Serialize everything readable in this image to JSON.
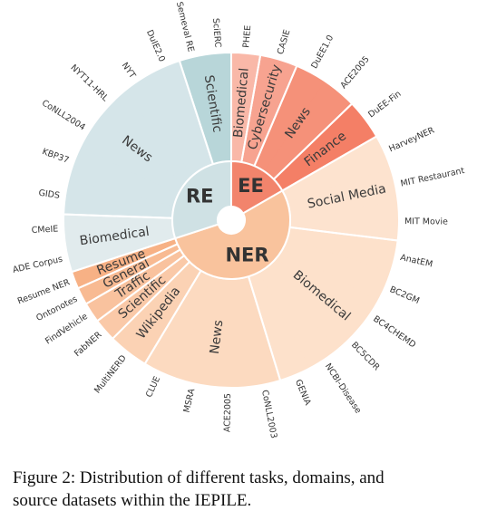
{
  "chart_data": {
    "type": "sunburst",
    "caption": [
      "Figure 2: Distribution of different tasks, domains, and",
      "source datasets within the IEPILE."
    ],
    "tasks": [
      {
        "name": "EE",
        "color": "#f2846c",
        "domains": [
          {
            "name": "Biomedical",
            "color": "#f9b8a8",
            "datasets": [
              {
                "name": "PHEE",
                "value": 10
              }
            ]
          },
          {
            "name": "Cybersecurity",
            "color": "#f7a390",
            "datasets": [
              {
                "name": "CASIE",
                "value": 13
              }
            ]
          },
          {
            "name": "News",
            "color": "#f59179",
            "datasets": [
              {
                "name": "DuEE1.0",
                "value": 11
              },
              {
                "name": "ACE2005",
                "value": 12
              }
            ]
          },
          {
            "name": "Finance",
            "color": "#f47f66",
            "datasets": [
              {
                "name": "DuEE-Fin",
                "value": 14
              }
            ]
          }
        ]
      },
      {
        "name": "NER",
        "color": "#f9c39d",
        "domains": [
          {
            "name": "Social Media",
            "color": "#fde3cf",
            "datasets": [
              {
                "name": "HarveyNER",
                "value": 12
              },
              {
                "name": "MIT Restaurant",
                "value": 12
              },
              {
                "name": "MIT Movie",
                "value": 13
              }
            ]
          },
          {
            "name": "Biomedical",
            "color": "#fde1cb",
            "datasets": [
              {
                "name": "AnatEM",
                "value": 11
              },
              {
                "name": "BC2GM",
                "value": 11
              },
              {
                "name": "BC4CHEMD",
                "value": 11
              },
              {
                "name": "BC5CDR",
                "value": 11
              },
              {
                "name": "NCBI-Disease",
                "value": 11
              },
              {
                "name": "GENIA",
                "value": 11
              }
            ]
          },
          {
            "name": "News",
            "color": "#fcdac0",
            "datasets": [
              {
                "name": "CoNLL2003",
                "value": 12
              },
              {
                "name": "ACE2005",
                "value": 12
              },
              {
                "name": "MSRA",
                "value": 12
              },
              {
                "name": "CLUE",
                "value": 12
              }
            ]
          },
          {
            "name": "Wikipedia",
            "color": "#fbd2b4",
            "datasets": [
              {
                "name": "MultiNERD",
                "value": 14
              }
            ]
          },
          {
            "name": "Scientific",
            "color": "#fac9a8",
            "datasets": [
              {
                "name": "FabNER",
                "value": 8
              }
            ]
          },
          {
            "name": "Traffic",
            "color": "#f9c29e",
            "datasets": [
              {
                "name": "FindVehicle",
                "value": 7
              }
            ]
          },
          {
            "name": "General",
            "color": "#f8ba92",
            "datasets": [
              {
                "name": "Ontonotes",
                "value": 6
              }
            ]
          },
          {
            "name": "Resume",
            "color": "#f7b185",
            "datasets": [
              {
                "name": "Resume NER",
                "value": 6
              }
            ]
          }
        ]
      },
      {
        "name": "RE",
        "color": "#cfe1e4",
        "domains": [
          {
            "name": "Biomedical",
            "color": "#e1ebed",
            "datasets": [
              {
                "name": "ADE Corpus",
                "value": 10
              },
              {
                "name": "CMeIE",
                "value": 10
              }
            ]
          },
          {
            "name": "News",
            "color": "#d5e5e9",
            "datasets": [
              {
                "name": "GIDS",
                "value": 12
              },
              {
                "name": "KBP37",
                "value": 12
              },
              {
                "name": "CoNLL2004",
                "value": 12
              },
              {
                "name": "NYT11-HRL",
                "value": 12
              },
              {
                "name": "NYT",
                "value": 11
              },
              {
                "name": "DuIE2.0",
                "value": 11
              }
            ]
          },
          {
            "name": "Scientific",
            "color": "#b8d6d9",
            "datasets": [
              {
                "name": "Semeval RE",
                "value": 9
              },
              {
                "name": "SciERC",
                "value": 9
              }
            ]
          }
        ]
      }
    ]
  }
}
